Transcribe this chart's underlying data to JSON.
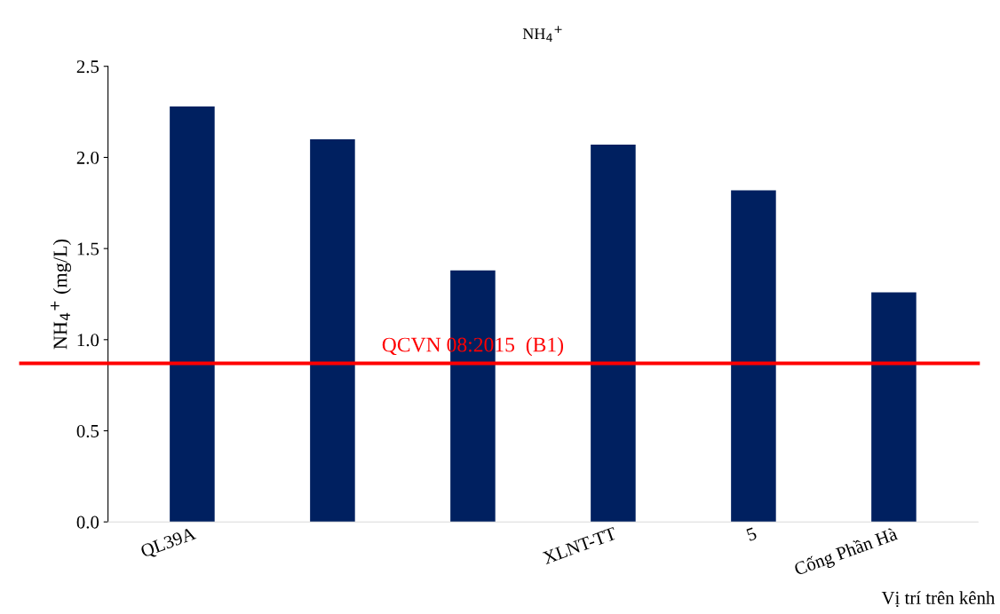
{
  "chart_data": {
    "type": "bar",
    "title": "NH$_{4}$$^{+}$",
    "ylabel": "NH$_{4}$$^{+}$ (mg/L)",
    "xlabel": "Vị trí trên kênh",
    "categories": [
      "QL39A",
      null,
      null,
      "XLNT-TT",
      "5",
      "Cống Phần Hà"
    ],
    "values": [
      2.28,
      2.1,
      1.38,
      2.07,
      1.82,
      1.26
    ],
    "color": "#002060",
    "ylim": [
      0,
      2.5
    ],
    "yticks": [
      {
        "value": 0,
        "label": "0.0"
      },
      {
        "value": 0.5,
        "label": "0.5"
      },
      {
        "value": 1,
        "label": "1.0"
      },
      {
        "value": 1.5,
        "label": "1.5"
      },
      {
        "value": 2,
        "label": "2.0"
      },
      {
        "value": 2.5,
        "label": "2.5"
      }
    ],
    "grid": false,
    "ref_lines": [
      {
        "axis": "y",
        "value": 0.87,
        "label": "QCVN 08:2015  (B1)",
        "color": "#ff0000"
      }
    ]
  }
}
